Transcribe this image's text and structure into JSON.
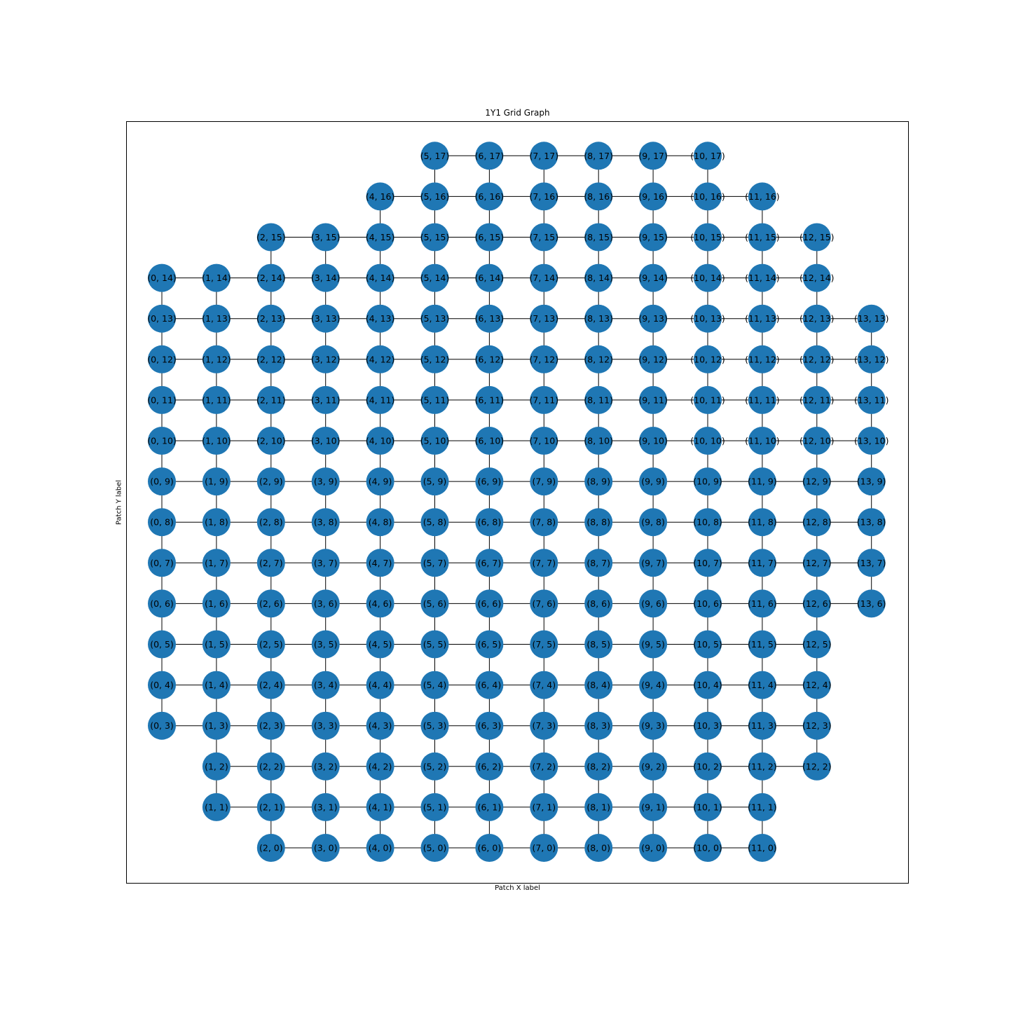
{
  "title": "1Y1 Grid Graph",
  "xlabel": "Patch X label",
  "ylabel": "Patch Y label",
  "node_color": "#1f77b4",
  "edge_color": "#000000",
  "grid": {
    "x_range": [
      0,
      13
    ],
    "y_range": [
      0,
      17
    ],
    "columns": [
      {
        "x": 0,
        "y_min": 3,
        "y_max": 14
      },
      {
        "x": 1,
        "y_min": 1,
        "y_max": 14
      },
      {
        "x": 2,
        "y_min": 0,
        "y_max": 15
      },
      {
        "x": 3,
        "y_min": 0,
        "y_max": 15
      },
      {
        "x": 4,
        "y_min": 0,
        "y_max": 16
      },
      {
        "x": 5,
        "y_min": 0,
        "y_max": 17
      },
      {
        "x": 6,
        "y_min": 0,
        "y_max": 17
      },
      {
        "x": 7,
        "y_min": 0,
        "y_max": 17
      },
      {
        "x": 8,
        "y_min": 0,
        "y_max": 17
      },
      {
        "x": 9,
        "y_min": 0,
        "y_max": 17
      },
      {
        "x": 10,
        "y_min": 0,
        "y_max": 17
      },
      {
        "x": 11,
        "y_min": 0,
        "y_max": 16
      },
      {
        "x": 12,
        "y_min": 2,
        "y_max": 15
      },
      {
        "x": 13,
        "y_min": 6,
        "y_max": 13
      }
    ]
  }
}
